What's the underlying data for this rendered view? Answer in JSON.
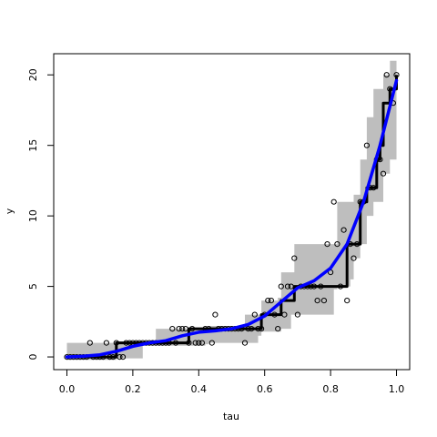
{
  "chart_data": {
    "type": "scatter",
    "title": "",
    "xlabel": "tau",
    "ylabel": "y",
    "xlim": [
      -0.04,
      1.04
    ],
    "ylim": [
      -0.9,
      21.5
    ],
    "x_ticks": [
      0.0,
      0.2,
      0.4,
      0.6,
      0.8,
      1.0
    ],
    "x_tick_labels": [
      "0.0",
      "0.2",
      "0.4",
      "0.6",
      "0.8",
      "1.0"
    ],
    "y_ticks": [
      0,
      5,
      10,
      15,
      20
    ],
    "y_tick_labels": [
      "0",
      "5",
      "10",
      "15",
      "20"
    ],
    "grid": false,
    "legend": "none",
    "colors": {
      "points": "#000000",
      "step": "#000000",
      "smooth": "#0000ff",
      "band": "#bebebe"
    },
    "points": [
      [
        0.0,
        0
      ],
      [
        0.01,
        0
      ],
      [
        0.02,
        0
      ],
      [
        0.03,
        0
      ],
      [
        0.04,
        0
      ],
      [
        0.05,
        0
      ],
      [
        0.06,
        0
      ],
      [
        0.07,
        1
      ],
      [
        0.08,
        0
      ],
      [
        0.09,
        0
      ],
      [
        0.1,
        0
      ],
      [
        0.11,
        0
      ],
      [
        0.12,
        1
      ],
      [
        0.13,
        0
      ],
      [
        0.14,
        0
      ],
      [
        0.15,
        1
      ],
      [
        0.16,
        0
      ],
      [
        0.17,
        0
      ],
      [
        0.18,
        1
      ],
      [
        0.19,
        1
      ],
      [
        0.2,
        1
      ],
      [
        0.21,
        1
      ],
      [
        0.22,
        1
      ],
      [
        0.23,
        1
      ],
      [
        0.24,
        1
      ],
      [
        0.25,
        1
      ],
      [
        0.26,
        1
      ],
      [
        0.27,
        1
      ],
      [
        0.28,
        1
      ],
      [
        0.29,
        1
      ],
      [
        0.3,
        1
      ],
      [
        0.31,
        1
      ],
      [
        0.32,
        2
      ],
      [
        0.33,
        1
      ],
      [
        0.34,
        2
      ],
      [
        0.35,
        2
      ],
      [
        0.36,
        2
      ],
      [
        0.37,
        1
      ],
      [
        0.38,
        2
      ],
      [
        0.39,
        1
      ],
      [
        0.4,
        1
      ],
      [
        0.41,
        1
      ],
      [
        0.42,
        2
      ],
      [
        0.43,
        2
      ],
      [
        0.44,
        1
      ],
      [
        0.45,
        3
      ],
      [
        0.46,
        2
      ],
      [
        0.47,
        2
      ],
      [
        0.48,
        2
      ],
      [
        0.49,
        2
      ],
      [
        0.5,
        2
      ],
      [
        0.51,
        2
      ],
      [
        0.52,
        2
      ],
      [
        0.53,
        2
      ],
      [
        0.54,
        1
      ],
      [
        0.55,
        2
      ],
      [
        0.56,
        2
      ],
      [
        0.57,
        3
      ],
      [
        0.58,
        2
      ],
      [
        0.59,
        2
      ],
      [
        0.6,
        3
      ],
      [
        0.61,
        4
      ],
      [
        0.62,
        4
      ],
      [
        0.63,
        3
      ],
      [
        0.64,
        2
      ],
      [
        0.65,
        5
      ],
      [
        0.66,
        3
      ],
      [
        0.67,
        5
      ],
      [
        0.68,
        5
      ],
      [
        0.69,
        7
      ],
      [
        0.7,
        3
      ],
      [
        0.71,
        5
      ],
      [
        0.72,
        5
      ],
      [
        0.73,
        5
      ],
      [
        0.74,
        5
      ],
      [
        0.75,
        5
      ],
      [
        0.76,
        4
      ],
      [
        0.77,
        5
      ],
      [
        0.78,
        4
      ],
      [
        0.79,
        8
      ],
      [
        0.8,
        6
      ],
      [
        0.81,
        11
      ],
      [
        0.82,
        8
      ],
      [
        0.83,
        5
      ],
      [
        0.84,
        9
      ],
      [
        0.85,
        4
      ],
      [
        0.86,
        8
      ],
      [
        0.87,
        7
      ],
      [
        0.88,
        8
      ],
      [
        0.89,
        11
      ],
      [
        0.9,
        11
      ],
      [
        0.91,
        15
      ],
      [
        0.92,
        12
      ],
      [
        0.93,
        12
      ],
      [
        0.94,
        14
      ],
      [
        0.95,
        14
      ],
      [
        0.96,
        13
      ],
      [
        0.97,
        20
      ],
      [
        0.98,
        19
      ],
      [
        0.99,
        18
      ],
      [
        1.0,
        20
      ]
    ],
    "step_line": [
      [
        0.0,
        0
      ],
      [
        0.14,
        0
      ],
      [
        0.15,
        1
      ],
      [
        0.36,
        1
      ],
      [
        0.37,
        2
      ],
      [
        0.58,
        2
      ],
      [
        0.59,
        3
      ],
      [
        0.64,
        3
      ],
      [
        0.65,
        4
      ],
      [
        0.68,
        4
      ],
      [
        0.69,
        5
      ],
      [
        0.83,
        5
      ],
      [
        0.85,
        8
      ],
      [
        0.87,
        8
      ],
      [
        0.89,
        11
      ],
      [
        0.9,
        11
      ],
      [
        0.91,
        12
      ],
      [
        0.93,
        12
      ],
      [
        0.94,
        14
      ],
      [
        0.95,
        15
      ],
      [
        0.96,
        18
      ],
      [
        0.98,
        19
      ],
      [
        1.0,
        20
      ]
    ],
    "smooth_curve": [
      [
        0.0,
        0.0
      ],
      [
        0.05,
        0.05
      ],
      [
        0.1,
        0.15
      ],
      [
        0.15,
        0.4
      ],
      [
        0.2,
        0.75
      ],
      [
        0.25,
        1.0
      ],
      [
        0.3,
        1.15
      ],
      [
        0.35,
        1.5
      ],
      [
        0.4,
        1.75
      ],
      [
        0.45,
        1.85
      ],
      [
        0.5,
        2.0
      ],
      [
        0.55,
        2.3
      ],
      [
        0.6,
        2.9
      ],
      [
        0.65,
        3.9
      ],
      [
        0.7,
        4.9
      ],
      [
        0.75,
        5.4
      ],
      [
        0.8,
        6.3
      ],
      [
        0.85,
        8.0
      ],
      [
        0.9,
        11.0
      ],
      [
        0.95,
        15.0
      ],
      [
        1.0,
        19.6
      ]
    ],
    "band": [
      [
        0.0,
        -0.2,
        1.0
      ],
      [
        0.14,
        -0.2,
        1.0
      ],
      [
        0.15,
        -0.1,
        1.1
      ],
      [
        0.22,
        -0.1,
        1.1
      ],
      [
        0.23,
        0.8,
        1.1
      ],
      [
        0.26,
        0.8,
        1.2
      ],
      [
        0.27,
        0.8,
        2.0
      ],
      [
        0.42,
        0.9,
        2.1
      ],
      [
        0.43,
        1.0,
        2.2
      ],
      [
        0.53,
        1.0,
        2.2
      ],
      [
        0.54,
        1.0,
        3.0
      ],
      [
        0.58,
        1.5,
        3.0
      ],
      [
        0.59,
        1.8,
        4.0
      ],
      [
        0.64,
        1.8,
        4.2
      ],
      [
        0.65,
        2.0,
        6.0
      ],
      [
        0.68,
        3.0,
        6.0
      ],
      [
        0.69,
        3.0,
        8.0
      ],
      [
        0.81,
        4.8,
        8.0
      ],
      [
        0.82,
        5.0,
        11.0
      ],
      [
        0.86,
        5.5,
        11.0
      ],
      [
        0.87,
        7.0,
        11.5
      ],
      [
        0.89,
        8.0,
        14.0
      ],
      [
        0.91,
        10.0,
        17.0
      ],
      [
        0.93,
        11.0,
        19.0
      ],
      [
        0.96,
        13.0,
        20.0
      ],
      [
        0.98,
        14.0,
        21.0
      ],
      [
        1.0,
        15.5,
        22.0
      ]
    ]
  }
}
